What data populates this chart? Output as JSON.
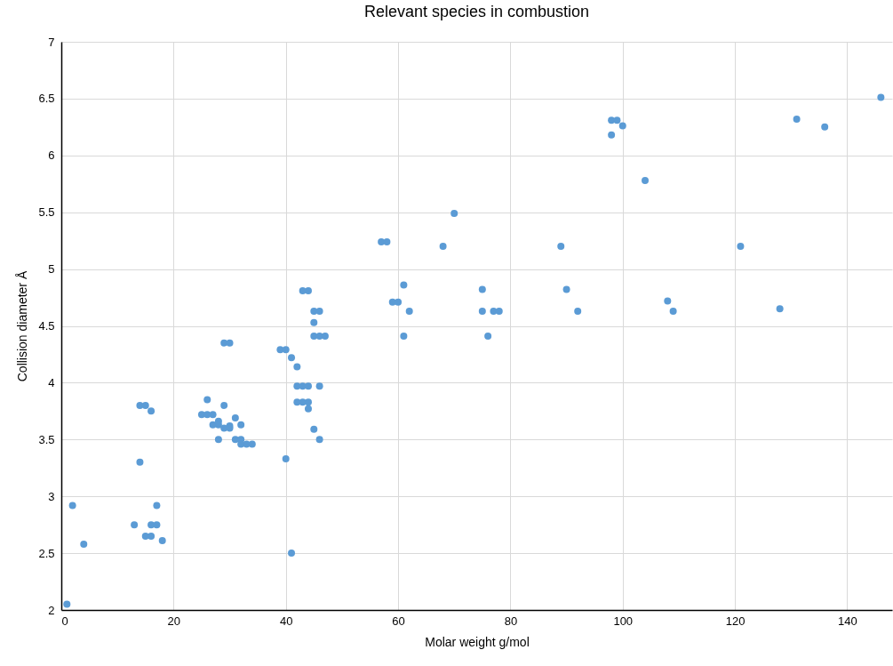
{
  "chart_data": {
    "type": "scatter",
    "title": "Relevant species in combustion",
    "xlabel": "Molar weight g/mol",
    "ylabel": "Collision diameter Å",
    "xlim": [
      0,
      148
    ],
    "ylim": [
      2,
      7
    ],
    "xticks": [
      0,
      20,
      40,
      60,
      80,
      100,
      120,
      140
    ],
    "yticks": [
      2,
      2.5,
      3,
      3.5,
      4,
      4.5,
      5,
      5.5,
      6,
      6.5,
      7
    ],
    "grid": true,
    "marker": "circle",
    "series": [
      {
        "color": "#5b9bd5",
        "x": [
          1,
          2,
          4,
          13,
          14,
          14,
          15,
          15,
          16,
          16,
          16,
          17,
          17,
          18,
          25,
          26,
          26,
          27,
          27,
          28,
          28,
          28,
          29,
          29,
          29,
          30,
          30,
          30,
          31,
          31,
          32,
          32,
          32,
          33,
          34,
          39,
          40,
          40,
          41,
          41,
          42,
          42,
          43,
          44,
          42,
          43,
          44,
          44,
          43,
          44,
          45,
          46,
          45,
          45,
          46,
          47,
          46,
          45,
          46,
          57,
          58,
          59,
          60,
          61,
          61,
          62,
          68,
          70,
          75,
          75,
          76,
          77,
          78,
          89,
          90,
          92,
          98,
          98,
          99,
          100,
          104,
          108,
          109,
          121,
          128,
          131,
          136,
          146
        ],
        "values": [
          2.05,
          2.92,
          2.58,
          2.75,
          3.3,
          3.8,
          3.8,
          2.65,
          3.75,
          2.75,
          2.65,
          2.92,
          2.75,
          2.61,
          3.72,
          3.85,
          3.72,
          3.72,
          3.63,
          3.66,
          3.63,
          3.5,
          3.8,
          3.6,
          4.35,
          4.35,
          3.62,
          3.6,
          3.69,
          3.5,
          3.5,
          3.46,
          3.63,
          3.46,
          3.46,
          4.29,
          4.29,
          3.33,
          4.22,
          2.5,
          4.14,
          3.97,
          3.97,
          3.97,
          3.83,
          3.83,
          3.83,
          3.77,
          4.81,
          4.81,
          4.63,
          4.63,
          4.53,
          4.41,
          4.41,
          4.41,
          3.97,
          3.59,
          3.5,
          5.24,
          5.24,
          4.71,
          4.71,
          4.86,
          4.41,
          4.63,
          5.2,
          5.49,
          4.82,
          4.63,
          4.41,
          4.63,
          4.63,
          5.2,
          4.82,
          4.63,
          6.18,
          6.31,
          6.31,
          6.26,
          5.78,
          4.72,
          4.63,
          5.2,
          4.65,
          6.32,
          6.25,
          6.51
        ]
      }
    ]
  }
}
